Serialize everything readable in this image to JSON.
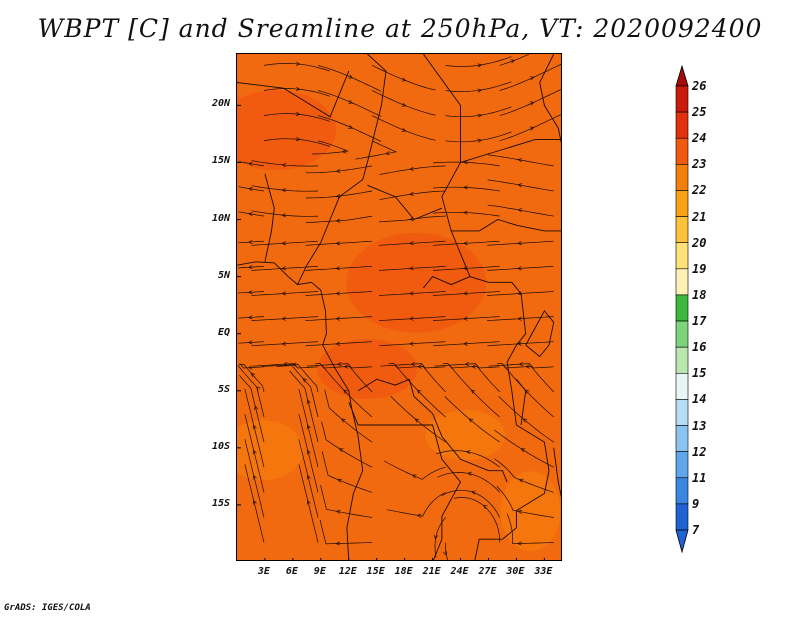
{
  "title": "WBPT [C] and Sreamline at 250hPa, VT: 2020092400",
  "credit": "GrADS: IGES/COLA",
  "map": {
    "lon_range": [
      0,
      35
    ],
    "lat_range": [
      -20,
      24.5
    ],
    "lat_ticks": [
      {
        "label": "20N",
        "lat": 20
      },
      {
        "label": "15N",
        "lat": 15
      },
      {
        "label": "10N",
        "lat": 10
      },
      {
        "label": "5N",
        "lat": 5
      },
      {
        "label": "EQ",
        "lat": 0
      },
      {
        "label": "5S",
        "lat": -5
      },
      {
        "label": "10S",
        "lat": -10
      },
      {
        "label": "15S",
        "lat": -15
      }
    ],
    "lon_ticks": [
      {
        "label": "3E",
        "lon": 3
      },
      {
        "label": "6E",
        "lon": 6
      },
      {
        "label": "9E",
        "lon": 9
      },
      {
        "label": "12E",
        "lon": 12
      },
      {
        "label": "15E",
        "lon": 15
      },
      {
        "label": "18E",
        "lon": 18
      },
      {
        "label": "21E",
        "lon": 21
      },
      {
        "label": "24E",
        "lon": 24
      },
      {
        "label": "27E",
        "lon": 27
      },
      {
        "label": "30E",
        "lon": 30
      },
      {
        "label": "33E",
        "lon": 33
      }
    ],
    "fill_color": "#f26a0f",
    "warm_color": "#ee4a10",
    "cool_color": "#f7860a"
  },
  "colorbar": {
    "levels": [
      "26",
      "25",
      "24",
      "23",
      "22",
      "21",
      "20",
      "19",
      "18",
      "17",
      "16",
      "15",
      "14",
      "13",
      "12",
      "11",
      "9",
      "7"
    ],
    "colors": [
      "#a50a0a",
      "#c81a0d",
      "#e2310e",
      "#f05a10",
      "#f37f0c",
      "#f7a315",
      "#fbc23a",
      "#fde27a",
      "#fdf2b4",
      "#3cb83c",
      "#7cd47c",
      "#b8e8b0",
      "#e6f6f4",
      "#b8dcf6",
      "#8cc4f0",
      "#5fa6ea",
      "#3a86e0",
      "#1f62d2"
    ],
    "top_color": "#a50a0a",
    "bottom_color": "#1f62d2"
  }
}
